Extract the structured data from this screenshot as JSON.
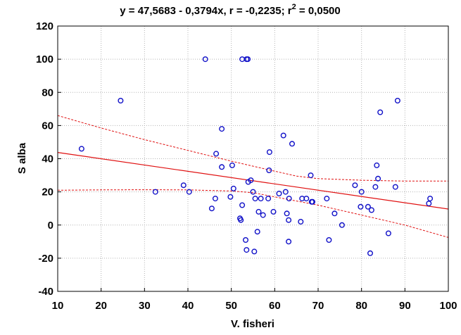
{
  "chart_data": {
    "type": "scatter",
    "title_main": "y = 47,5683 - 0,3794x, r = -0,2235; r",
    "title_sup": "2",
    "title_tail": " = 0,0500",
    "xlabel": "V. fisheri",
    "ylabel": "S alba",
    "xlim": [
      10,
      100
    ],
    "ylim": [
      -40,
      120
    ],
    "xticks": [
      10,
      20,
      30,
      40,
      50,
      60,
      70,
      80,
      90,
      100
    ],
    "yticks": [
      -40,
      -20,
      0,
      20,
      40,
      60,
      80,
      100,
      120
    ],
    "grid": true,
    "regression": {
      "intercept": 47.5683,
      "slope": -0.3794
    },
    "confidence_band": {
      "upper": [
        [
          10,
          66
        ],
        [
          20,
          58.5
        ],
        [
          30,
          51.5
        ],
        [
          40,
          45
        ],
        [
          50,
          38.5
        ],
        [
          60,
          32.5
        ],
        [
          65,
          29.5
        ],
        [
          70,
          28
        ],
        [
          80,
          27
        ],
        [
          90,
          26.5
        ],
        [
          100,
          26.5
        ]
      ],
      "lower": [
        [
          10,
          21
        ],
        [
          20,
          21.2
        ],
        [
          30,
          21.3
        ],
        [
          40,
          21.2
        ],
        [
          50,
          20.5
        ],
        [
          55,
          19.5
        ],
        [
          60,
          17
        ],
        [
          70,
          12
        ],
        [
          80,
          6
        ],
        [
          90,
          0
        ],
        [
          100,
          -7.5
        ]
      ]
    },
    "colors": {
      "points": "#1010c8",
      "fit": "#e01010",
      "grid": "#b4b4b4"
    },
    "points": [
      [
        15.5,
        46
      ],
      [
        24.5,
        75
      ],
      [
        32.5,
        20
      ],
      [
        39,
        24
      ],
      [
        40.3,
        20
      ],
      [
        44,
        100
      ],
      [
        45.5,
        10
      ],
      [
        46.3,
        16
      ],
      [
        46.5,
        43
      ],
      [
        47.8,
        35
      ],
      [
        47.8,
        58
      ],
      [
        49.8,
        17
      ],
      [
        50.2,
        36
      ],
      [
        50.5,
        22
      ],
      [
        52,
        4
      ],
      [
        52.2,
        3
      ],
      [
        52.5,
        12
      ],
      [
        52.5,
        100
      ],
      [
        53.3,
        -9
      ],
      [
        53.5,
        -15
      ],
      [
        53.5,
        100
      ],
      [
        53.8,
        100
      ],
      [
        53.9,
        26
      ],
      [
        54.5,
        27
      ],
      [
        55,
        20
      ],
      [
        55.3,
        -16
      ],
      [
        55.5,
        16
      ],
      [
        56,
        -4
      ],
      [
        56.3,
        8
      ],
      [
        56.8,
        16
      ],
      [
        57.3,
        6
      ],
      [
        58.5,
        16
      ],
      [
        58.7,
        33
      ],
      [
        58.8,
        44
      ],
      [
        59.7,
        8
      ],
      [
        61,
        19
      ],
      [
        62,
        54
      ],
      [
        62.5,
        20
      ],
      [
        62.8,
        7
      ],
      [
        63.2,
        3
      ],
      [
        63.2,
        -10
      ],
      [
        63.3,
        16
      ],
      [
        64,
        49
      ],
      [
        66,
        2
      ],
      [
        66.3,
        16
      ],
      [
        67.3,
        16
      ],
      [
        68.3,
        30
      ],
      [
        68.5,
        14
      ],
      [
        68.7,
        14
      ],
      [
        72,
        16
      ],
      [
        72.5,
        -9
      ],
      [
        73.8,
        7
      ],
      [
        75.5,
        0
      ],
      [
        78.5,
        24
      ],
      [
        79.8,
        11
      ],
      [
        80,
        20
      ],
      [
        81.5,
        11
      ],
      [
        82,
        -17
      ],
      [
        82.3,
        9
      ],
      [
        83.2,
        23
      ],
      [
        83.5,
        36
      ],
      [
        83.8,
        28
      ],
      [
        84.3,
        68
      ],
      [
        86.2,
        -5
      ],
      [
        87.8,
        23
      ],
      [
        88.3,
        75
      ],
      [
        95.5,
        13
      ],
      [
        95.8,
        16
      ]
    ]
  }
}
